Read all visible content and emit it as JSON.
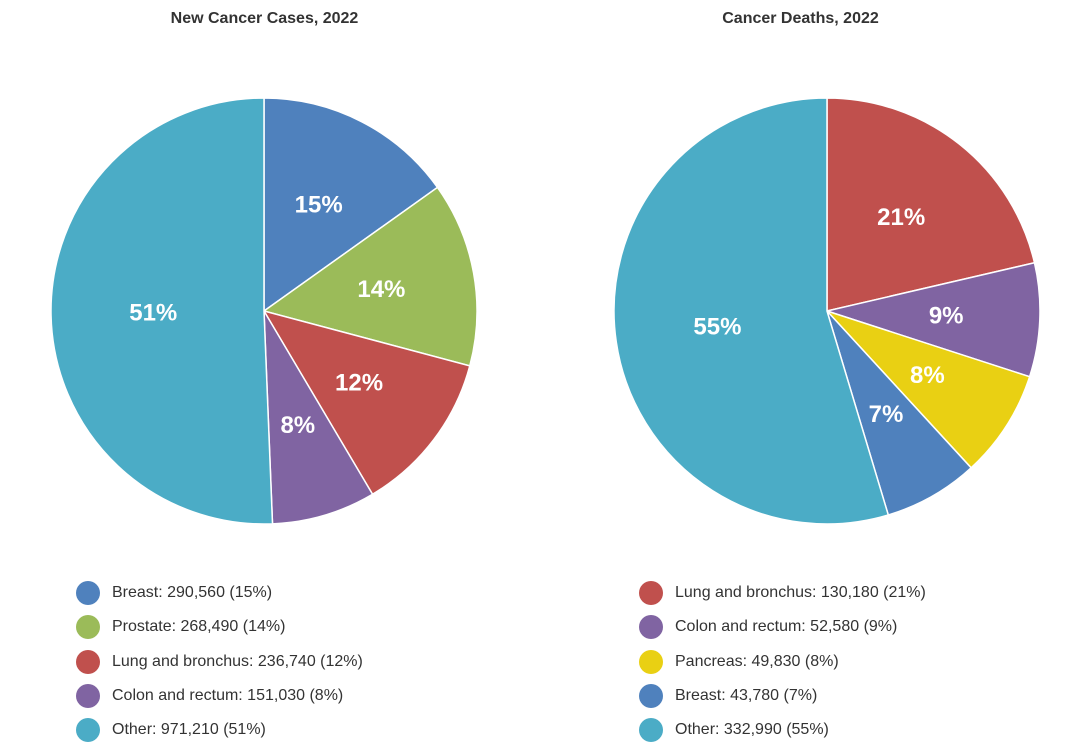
{
  "chart_data": [
    {
      "type": "pie",
      "title": "New Cancer Cases, 2022",
      "slices": [
        {
          "name": "Breast",
          "value": 290560,
          "percent_label": "15%",
          "legend": "Breast: 290,560 (15%)",
          "color": "#4f81bd"
        },
        {
          "name": "Prostate",
          "value": 268490,
          "percent_label": "14%",
          "legend": "Prostate: 268,490 (14%)",
          "color": "#9bbb59"
        },
        {
          "name": "Lung and bronchus",
          "value": 236740,
          "percent_label": "12%",
          "legend": "Lung and bronchus: 236,740 (12%)",
          "color": "#c0504d"
        },
        {
          "name": "Colon and rectum",
          "value": 151030,
          "percent_label": "8%",
          "legend": "Colon and rectum: 151,030 (8%)",
          "color": "#8064a2"
        },
        {
          "name": "Other",
          "value": 971210,
          "percent_label": "51%",
          "legend": "Other: 971,210 (51%)",
          "color": "#4bacc6"
        }
      ]
    },
    {
      "type": "pie",
      "title": "Cancer Deaths, 2022",
      "slices": [
        {
          "name": "Lung and bronchus",
          "value": 130180,
          "percent_label": "21%",
          "legend": "Lung and bronchus: 130,180 (21%)",
          "color": "#c0504d"
        },
        {
          "name": "Colon and rectum",
          "value": 52580,
          "percent_label": "9%",
          "legend": "Colon and rectum: 52,580 (9%)",
          "color": "#8064a2"
        },
        {
          "name": "Pancreas",
          "value": 49830,
          "percent_label": "8%",
          "legend": "Pancreas: 49,830 (8%)",
          "color": "#e9d013"
        },
        {
          "name": "Breast",
          "value": 43780,
          "percent_label": "7%",
          "legend": "Breast: 43,780 (7%)",
          "color": "#4f81bd"
        },
        {
          "name": "Other",
          "value": 332990,
          "percent_label": "55%",
          "legend": "Other: 332,990 (55%)",
          "color": "#4bacc6"
        }
      ]
    }
  ]
}
